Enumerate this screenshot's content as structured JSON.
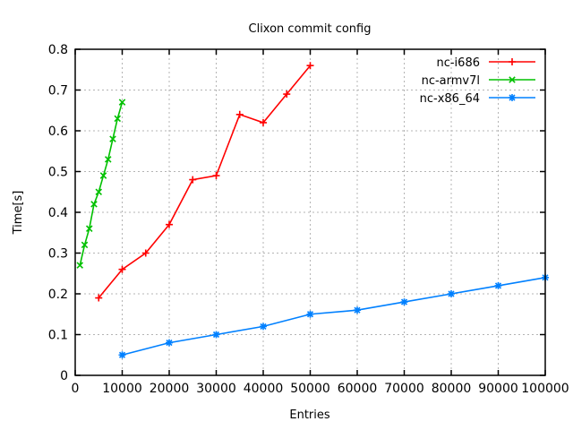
{
  "chart_data": {
    "type": "line",
    "title": "Clixon commit config",
    "xlabel": "Entries",
    "ylabel": "Time[s]",
    "xlim": [
      0,
      100000
    ],
    "ylim": [
      0,
      0.8
    ],
    "x_ticks": [
      0,
      10000,
      20000,
      30000,
      40000,
      50000,
      60000,
      70000,
      80000,
      90000,
      100000
    ],
    "x_tick_labels": [
      "0",
      "10000",
      "20000",
      "30000",
      "40000",
      "50000",
      "60000",
      "70000",
      "80000",
      "90000",
      "100000"
    ],
    "y_ticks": [
      0,
      0.1,
      0.2,
      0.3,
      0.4,
      0.5,
      0.6,
      0.7,
      0.8
    ],
    "y_tick_labels": [
      "0",
      "0.1",
      "0.2",
      "0.3",
      "0.4",
      "0.5",
      "0.6",
      "0.7",
      "0.8"
    ],
    "grid": true,
    "legend_position": "top-right",
    "series": [
      {
        "name": "nc-i686",
        "color": "#ff0000",
        "marker": "plus",
        "points": [
          [
            5000,
            0.19
          ],
          [
            10000,
            0.26
          ],
          [
            15000,
            0.3
          ],
          [
            20000,
            0.37
          ],
          [
            25000,
            0.48
          ],
          [
            30000,
            0.49
          ],
          [
            35000,
            0.64
          ],
          [
            40000,
            0.62
          ],
          [
            45000,
            0.69
          ],
          [
            50000,
            0.76
          ]
        ]
      },
      {
        "name": "nc-armv7l",
        "color": "#00c000",
        "marker": "cross",
        "points": [
          [
            1000,
            0.27
          ],
          [
            2000,
            0.32
          ],
          [
            3000,
            0.36
          ],
          [
            4000,
            0.42
          ],
          [
            5000,
            0.45
          ],
          [
            6000,
            0.49
          ],
          [
            7000,
            0.53
          ],
          [
            8000,
            0.58
          ],
          [
            9000,
            0.63
          ],
          [
            10000,
            0.67
          ]
        ]
      },
      {
        "name": "nc-x86_64",
        "color": "#0080ff",
        "marker": "star",
        "points": [
          [
            10000,
            0.05
          ],
          [
            20000,
            0.08
          ],
          [
            30000,
            0.1
          ],
          [
            40000,
            0.12
          ],
          [
            50000,
            0.15
          ],
          [
            60000,
            0.16
          ],
          [
            70000,
            0.18
          ],
          [
            80000,
            0.2
          ],
          [
            90000,
            0.22
          ],
          [
            100000,
            0.24
          ]
        ]
      }
    ],
    "colors": {
      "background": "#ffffff",
      "border": "#000000",
      "grid": "#b4b4b4",
      "text": "#000000"
    }
  }
}
